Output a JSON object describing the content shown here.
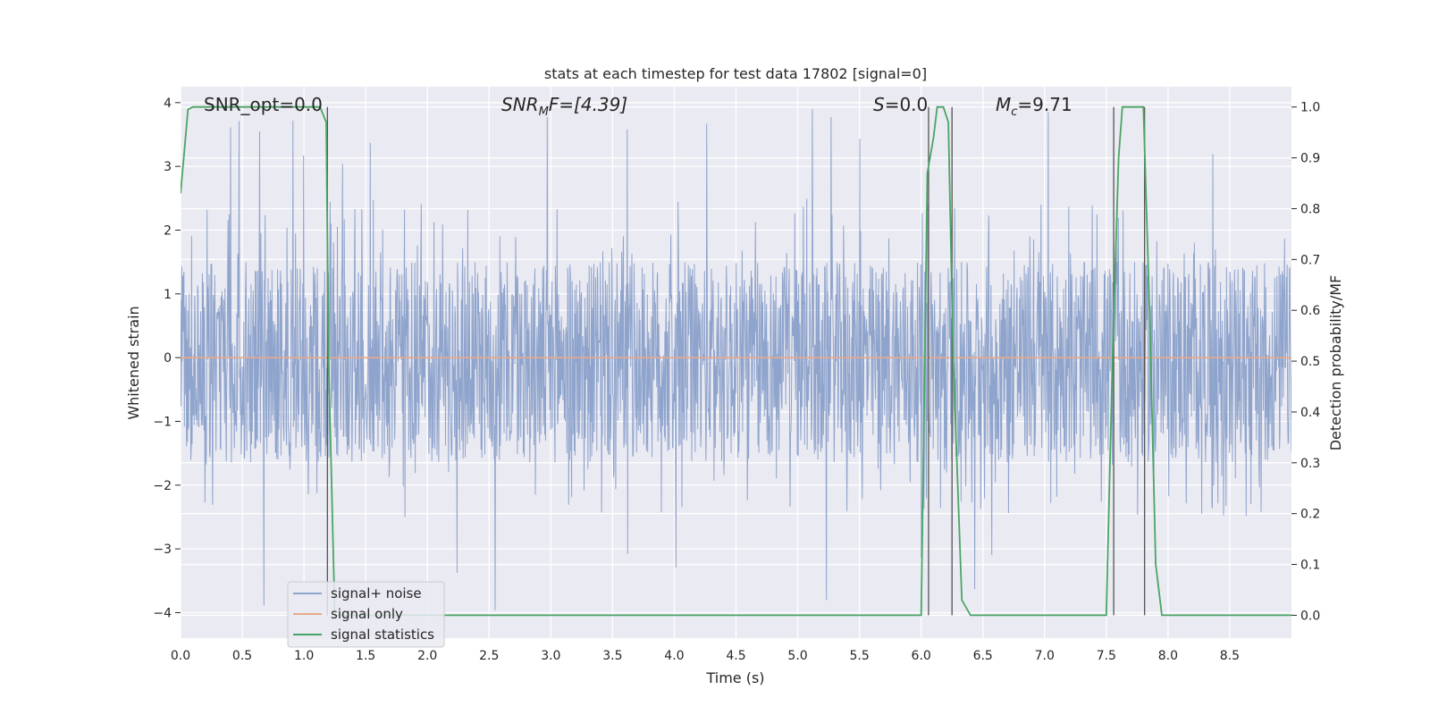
{
  "chart_data": {
    "type": "line",
    "title": "stats at each timestep for test data 17802 [signal=0]",
    "xlabel": "Time (s)",
    "ylabel": "Whitened strain",
    "ylabel_right": "Detection probability/MF",
    "xlim": [
      0.0,
      9.0
    ],
    "ylim": [
      -4.4,
      4.25
    ],
    "ylim_right": [
      -0.045,
      1.04
    ],
    "x_ticks": [
      "0.0",
      "0.5",
      "1.0",
      "1.5",
      "2.0",
      "2.5",
      "3.0",
      "3.5",
      "4.0",
      "4.5",
      "5.0",
      "5.5",
      "6.0",
      "6.5",
      "7.0",
      "7.5",
      "8.0",
      "8.5"
    ],
    "y_ticks": [
      "4",
      "3",
      "2",
      "1",
      "0",
      "−1",
      "−2",
      "−3",
      "−4"
    ],
    "y_ticks_right": [
      "1.0",
      "0.9",
      "0.8",
      "0.7",
      "0.6",
      "0.5",
      "0.4",
      "0.3",
      "0.2",
      "0.1",
      "0.0"
    ],
    "grid": true,
    "legend_position": "lower-left",
    "annotations": {
      "snr_opt": "SNR_opt=0.0",
      "snr_mf_italic": "SNR",
      "snr_mf_sub": "M",
      "snr_mf_rest": "F=[4.39]",
      "s_italic": "S",
      "s_rest": "=0.0",
      "mc_italic": "M",
      "mc_sub": "c",
      "mc_rest": "=9.71"
    },
    "series": [
      {
        "name": "signal+ noise",
        "color": "#8fa4cc",
        "axis": "left",
        "description": "whitened strain noise, envelope roughly ±2.3 with spikes to ±3.9",
        "x_range": [
          0.0,
          9.0
        ],
        "amplitude_core": [
          -1.65,
          1.5
        ],
        "amplitude_peak": [
          -4.0,
          3.9
        ]
      },
      {
        "name": "signal only",
        "color": "#e8a98a",
        "axis": "left",
        "x": [
          0.0,
          9.0
        ],
        "y": [
          0.0,
          0.0
        ]
      },
      {
        "name": "signal statistics",
        "color": "#4aa564",
        "axis": "right",
        "x": [
          0.0,
          0.03,
          0.06,
          0.1,
          0.15,
          0.3,
          0.6,
          1.0,
          1.13,
          1.18,
          1.2,
          1.25,
          1.3,
          1.5,
          2.0,
          3.0,
          4.0,
          5.0,
          6.0,
          6.05,
          6.1,
          6.13,
          6.18,
          6.22,
          6.26,
          6.33,
          6.4,
          6.6,
          6.9,
          7.0,
          7.05,
          7.2,
          7.5,
          7.55,
          7.6,
          7.63,
          7.68,
          7.8,
          7.85,
          7.9,
          7.95,
          8.0,
          8.5,
          9.0
        ],
        "y": [
          0.83,
          0.91,
          0.995,
          1.0,
          1.0,
          1.0,
          1.0,
          1.0,
          1.0,
          0.97,
          0.5,
          0.0,
          0.0,
          0.0,
          0.0,
          0.0,
          0.0,
          0.0,
          0.0,
          0.87,
          0.94,
          1.0,
          1.0,
          0.97,
          0.5,
          0.03,
          0.0,
          0.0,
          0.0,
          0.0,
          0.0,
          0.0,
          0.0,
          0.5,
          0.9,
          1.0,
          1.0,
          1.0,
          0.6,
          0.1,
          0.0,
          0.0,
          0.0,
          0.0
        ]
      }
    ],
    "vertical_markers": [
      1.19,
      6.06,
      6.25,
      7.56,
      7.81
    ]
  }
}
